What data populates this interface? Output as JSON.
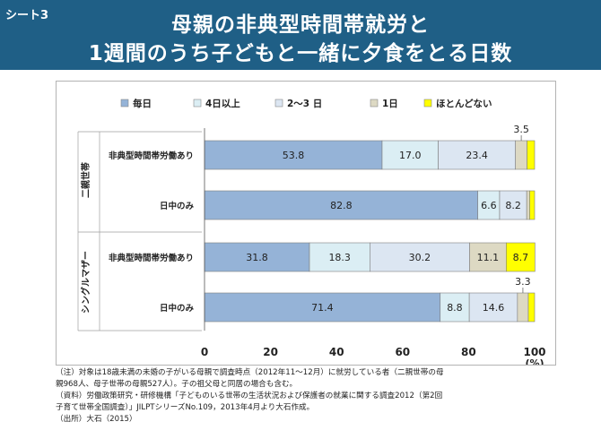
{
  "header": {
    "sheet_label": "シート3",
    "title_line1": "母親の非典型時間帯就労と",
    "title_line2": "1週間のうち子どもと一緒に夕食をとる日数"
  },
  "colors": {
    "header_bg": "#1f5f86",
    "every_day": "#95b3d7",
    "four_plus": "#dbeef4",
    "two_three": "#dce6f2",
    "one_day": "#ddd9c3",
    "almost_none": "#ffff00"
  },
  "chart_data": {
    "type": "bar",
    "orientation": "horizontal",
    "stacked": true,
    "groups": [
      {
        "label": "二親世帯",
        "rows": [
          "非典型時間帯労働あり",
          "日中のみ"
        ]
      },
      {
        "label": "シングルマザー",
        "rows": [
          "非典型時間帯労働あり",
          "日中のみ"
        ]
      }
    ],
    "categories": [
      "非典型時間帯労働あり",
      "日中のみ",
      "非典型時間帯労働あり",
      "日中のみ"
    ],
    "series": [
      {
        "name": "毎日",
        "values": [
          53.8,
          82.8,
          31.8,
          71.4
        ],
        "color": "#95b3d7"
      },
      {
        "name": "4日以上",
        "values": [
          17.0,
          6.6,
          18.3,
          8.8
        ],
        "color": "#dbeef4"
      },
      {
        "name": "2～3 日",
        "values": [
          23.4,
          8.2,
          30.2,
          14.6
        ],
        "color": "#dce6f2"
      },
      {
        "name": "1日",
        "values": [
          3.5,
          0.9,
          11.1,
          3.3
        ],
        "color": "#ddd9c3"
      },
      {
        "name": "ほとんどない",
        "values": [
          2.3,
          1.5,
          8.7,
          1.9
        ],
        "color": "#ffff00"
      }
    ],
    "data_labels": [
      [
        "53.8",
        "17.0",
        "23.4",
        "",
        ""
      ],
      [
        "82.8",
        "6.6",
        "8.2",
        "",
        ""
      ],
      [
        "31.8",
        "18.3",
        "30.2",
        "11.1",
        "8.7"
      ],
      [
        "71.4",
        "8.8",
        "14.6",
        "",
        ""
      ]
    ],
    "callouts": [
      {
        "row": 0,
        "series": 3,
        "text": "3.5"
      },
      {
        "row": 3,
        "series": 3,
        "text": "3.3"
      }
    ],
    "xlim": [
      0,
      100
    ],
    "xticks": [
      0,
      20,
      40,
      60,
      80,
      100
    ],
    "xunit": "(%)",
    "legend_position": "top",
    "grid": false
  },
  "notes": [
    "（注）対象は18歳未満の未婚の子がいる母親で調査時点（2012年11～12月）に就労している者（二親世帯の母",
    "親968人、母子世帯の母親527人）。子の祖父母と同居の場合も含む。",
    "（資料）労働政策研究・研修機構「子どものいる世帯の生活状況および保護者の就業に関する調査2012（第2回",
    "子育て世帯全国調査）」JILPTシリーズNo.109，2013年4月より大石作成。",
    "（出所）大石（2015）"
  ]
}
